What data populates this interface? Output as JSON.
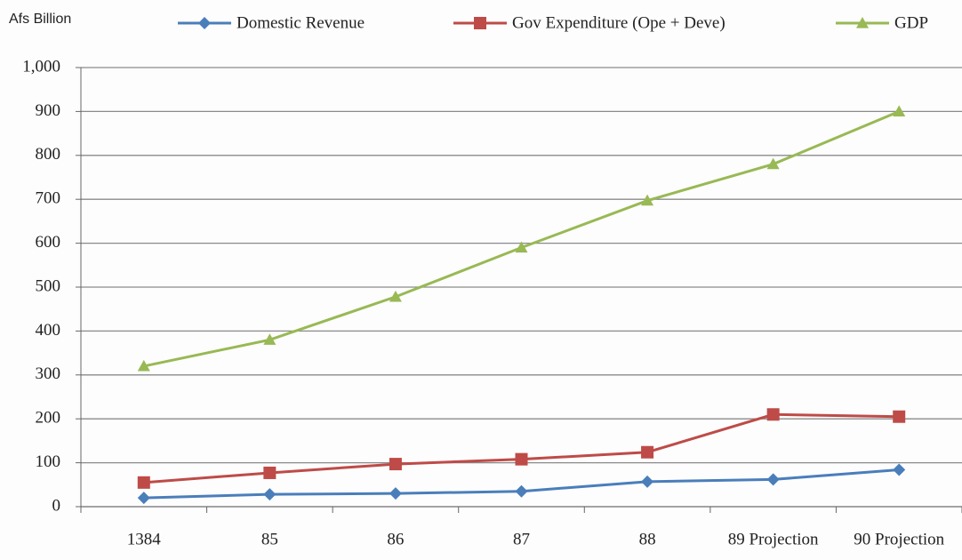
{
  "chart_data": {
    "type": "line",
    "y_axis_label": "Afs Billion",
    "categories": [
      "1384",
      "85",
      "86",
      "87",
      "88",
      "89 Projection",
      "90 Projection"
    ],
    "series": [
      {
        "name": "Domestic Revenue",
        "color": "#4a7ebb",
        "marker": "diamond",
        "values": [
          20,
          28,
          30,
          35,
          57,
          62,
          84
        ]
      },
      {
        "name": "Gov Expenditure (Ope + Deve)",
        "color": "#be4b48",
        "marker": "square",
        "values": [
          55,
          77,
          97,
          108,
          124,
          210,
          205
        ]
      },
      {
        "name": "GDP",
        "color": "#98b954",
        "marker": "triangle",
        "values": [
          320,
          380,
          478,
          590,
          697,
          780,
          900
        ]
      }
    ],
    "ylim": [
      0,
      1000
    ],
    "yticks": [
      0,
      100,
      200,
      300,
      400,
      500,
      600,
      700,
      800,
      900,
      {
        "value": 1000,
        "label": "1,000"
      }
    ],
    "grid": true
  }
}
